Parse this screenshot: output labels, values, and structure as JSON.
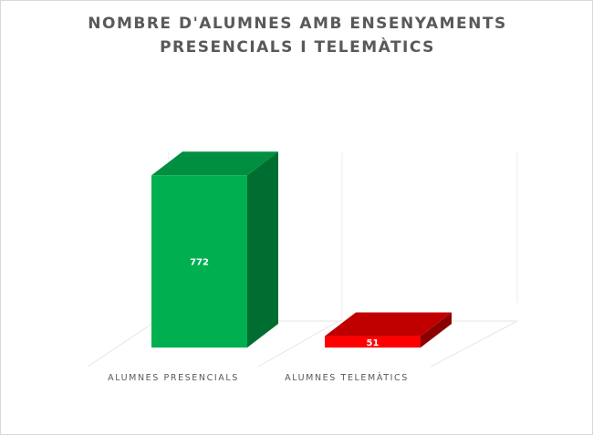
{
  "chart_data": {
    "type": "bar",
    "title_lines": [
      "NOMBRE D'ALUMNES AMB ENSENYAMENTS",
      "PRESENCIALS I TELEMÀTICS"
    ],
    "categories": [
      "ALUMNES PRESENCIALS",
      "ALUMNES TELEMÀTICS"
    ],
    "values": [
      772,
      51
    ],
    "data_labels": [
      "772",
      "51"
    ],
    "ylim": [
      0,
      800
    ],
    "style": "3d-column",
    "grid": false,
    "legend": "none",
    "colors": {
      "front": [
        "#00B050",
        "#FF0000"
      ],
      "top": [
        "#008F41",
        "#C00000"
      ],
      "side": [
        "#006E30",
        "#8B0000"
      ]
    }
  }
}
